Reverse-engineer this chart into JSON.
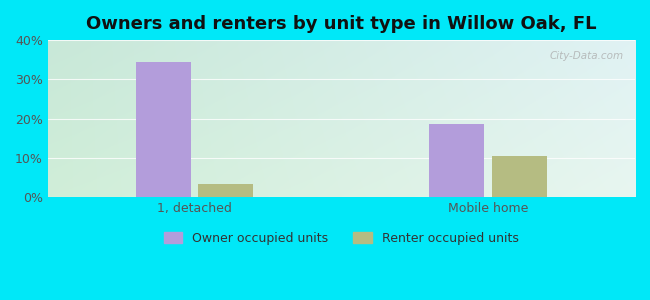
{
  "title": "Owners and renters by unit type in Willow Oak, FL",
  "categories": [
    "1, detached",
    "Mobile home"
  ],
  "owner_values": [
    34.5,
    18.5
  ],
  "renter_values": [
    3.3,
    10.5
  ],
  "owner_color": "#b39ddb",
  "renter_color": "#b5bc82",
  "ylim": [
    0,
    40
  ],
  "yticks": [
    0,
    10,
    20,
    30,
    40
  ],
  "yticklabels": [
    "0%",
    "10%",
    "20%",
    "30%",
    "40%"
  ],
  "bar_width": 0.28,
  "bg_outer": "#00e8f8",
  "bg_top_left": "#c8e8d4",
  "bg_top_right": "#ddeef4",
  "bg_bot_left": "#d4eeda",
  "bg_bot_right": "#eaf8f0",
  "watermark": "City-Data.com",
  "legend_labels": [
    "Owner occupied units",
    "Renter occupied units"
  ],
  "title_fontsize": 13,
  "tick_fontsize": 9,
  "group_positions": [
    0.75,
    2.25
  ],
  "xlim": [
    0.0,
    3.0
  ]
}
